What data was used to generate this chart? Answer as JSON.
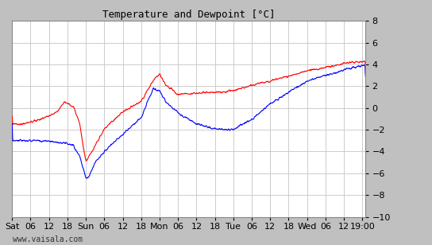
{
  "title": "Temperature and Dewpoint [°C]",
  "ylim": [
    -10,
    8
  ],
  "yticks": [
    -10,
    -8,
    -6,
    -4,
    -2,
    0,
    2,
    4,
    6,
    8
  ],
  "plot_bg_color": "#ffffff",
  "fig_bg_color": "#c0c0c0",
  "grid_color": "#cccccc",
  "temp_color": "#ff0000",
  "dewp_color": "#0000ff",
  "line_width": 0.8,
  "watermark": "www.vaisala.com",
  "x_tick_labels": [
    "Sat",
    "06",
    "12",
    "18",
    "Sun",
    "06",
    "12",
    "18",
    "Mon",
    "06",
    "12",
    "18",
    "Tue",
    "06",
    "12",
    "18",
    "Wed",
    "06",
    "12",
    "19:00"
  ],
  "x_tick_positions": [
    0,
    6,
    12,
    18,
    24,
    30,
    36,
    42,
    48,
    54,
    60,
    66,
    72,
    78,
    84,
    90,
    96,
    102,
    108,
    114
  ],
  "x_total_hours": 115
}
